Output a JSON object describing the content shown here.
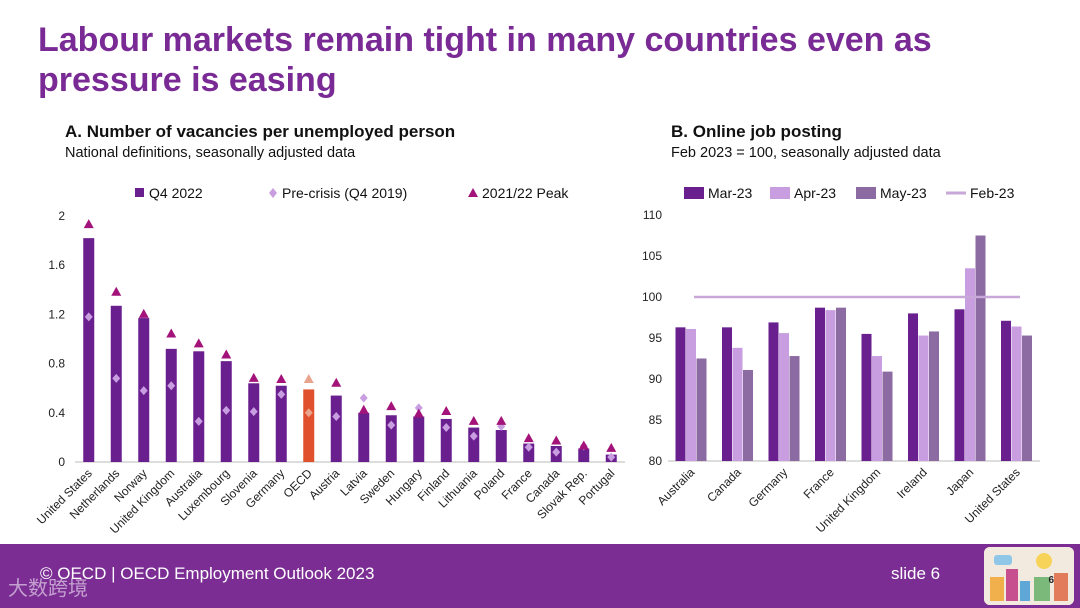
{
  "slide": {
    "title": "Labour markets remain tight in many countries even as pressure is easing",
    "footer": "© OECD | OECD Employment Outlook 2023",
    "slide_number_label": "slide 6",
    "thumb_number": "6",
    "watermark": "大数跨境"
  },
  "panels": {
    "a": {
      "title": "A. Number of vacancies per unemployed person",
      "subtitle": "National definitions, seasonally adjusted data"
    },
    "b": {
      "title": "B. Online job posting",
      "subtitle": "Feb 2023 = 100, seasonally adjusted data"
    }
  },
  "colors": {
    "brand": "#7a2a95",
    "q4_2022": "#6a1f8f",
    "pre_crisis": "#c89ee0",
    "peak": "#a3137a",
    "oecd_bar": "#e0502d",
    "oecd_marker": "#e9a48d",
    "mar23": "#6a1f8f",
    "apr23": "#c89ee0",
    "may23": "#8c6aa2",
    "feb23": "#c7a8d8"
  },
  "chart_data": [
    {
      "type": "bar",
      "categories": [
        "United States",
        "Netherlands",
        "Norway",
        "United Kingdom",
        "Australia",
        "Luxembourg",
        "Slovenia",
        "Germany",
        "OECD",
        "Austria",
        "Latvia",
        "Sweden",
        "Hungary",
        "Finland",
        "Lithuania",
        "Poland",
        "France",
        "Canada",
        "Slovak Rep.",
        "Portugal"
      ],
      "series": [
        {
          "name": "Q4 2022",
          "kind": "bar",
          "values": [
            1.82,
            1.27,
            1.17,
            0.92,
            0.9,
            0.82,
            0.64,
            0.62,
            0.59,
            0.54,
            0.4,
            0.38,
            0.37,
            0.35,
            0.28,
            0.26,
            0.15,
            0.13,
            0.11,
            0.06
          ]
        },
        {
          "name": "Pre-crisis (Q4 2019)",
          "kind": "marker-diamond",
          "values": [
            1.18,
            0.68,
            0.58,
            0.62,
            0.33,
            0.42,
            0.41,
            0.55,
            0.4,
            0.37,
            0.52,
            0.3,
            0.44,
            0.28,
            0.21,
            0.29,
            0.12,
            0.08,
            0.13,
            0.04
          ]
        },
        {
          "name": "2021/22 Peak",
          "kind": "marker-triangle",
          "values": [
            1.91,
            1.36,
            1.18,
            1.02,
            0.94,
            0.85,
            0.66,
            0.65,
            0.65,
            0.62,
            0.4,
            0.43,
            0.37,
            0.39,
            0.31,
            0.31,
            0.17,
            0.15,
            0.11,
            0.09
          ]
        }
      ],
      "highlight": "OECD",
      "ylim": [
        0,
        2
      ],
      "yticks": [
        "0",
        "0.4",
        "0.8",
        "1.2",
        "1.6",
        "2"
      ],
      "legend": "top"
    },
    {
      "type": "bar",
      "categories": [
        "Australia",
        "Canada",
        "Germany",
        "France",
        "United Kingdom",
        "Ireland",
        "Japan",
        "United States"
      ],
      "series": [
        {
          "name": "Mar-23",
          "kind": "bar",
          "values": [
            96.3,
            96.3,
            96.9,
            98.7,
            95.5,
            98.0,
            98.5,
            97.1
          ]
        },
        {
          "name": "Apr-23",
          "kind": "bar",
          "values": [
            96.1,
            93.8,
            95.6,
            98.4,
            92.8,
            95.3,
            103.5,
            96.4
          ]
        },
        {
          "name": "May-23",
          "kind": "bar",
          "values": [
            92.5,
            91.1,
            92.8,
            98.7,
            90.9,
            95.8,
            107.5,
            95.3
          ]
        },
        {
          "name": "Feb-23",
          "kind": "line",
          "value": 100
        }
      ],
      "ylim": [
        80,
        110
      ],
      "yticks": [
        "80",
        "85",
        "90",
        "95",
        "100",
        "105",
        "110"
      ],
      "legend": "top"
    }
  ]
}
